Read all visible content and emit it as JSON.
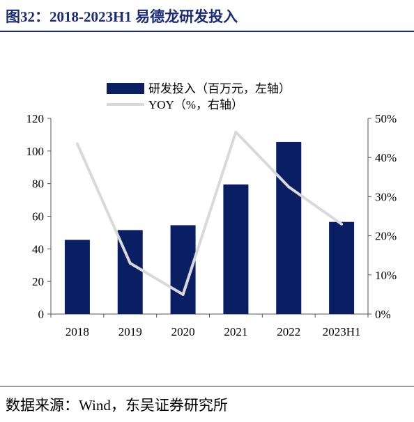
{
  "figure": {
    "title": "图32：2018-2023H1 易德龙研发投入",
    "source": "数据来源：Wind，东吴证券研究所"
  },
  "colors": {
    "bar": "#0a1f63",
    "line": "#d9d9d9",
    "title": "#1a2a78"
  },
  "chart_data": {
    "type": "bar",
    "categories": [
      "2018",
      "2019",
      "2020",
      "2021",
      "2022",
      "2023H1"
    ],
    "series": [
      {
        "name": "研发投入（百万元，左轴）",
        "type": "bar",
        "axis": "left",
        "values": [
          45.5,
          51.5,
          54.5,
          79.5,
          105.5,
          56.5
        ]
      },
      {
        "name": "YOY（%，右轴）",
        "type": "line",
        "axis": "right",
        "values": [
          43.5,
          13.0,
          5.0,
          46.5,
          32.5,
          23.0
        ]
      }
    ],
    "y_left": {
      "ylim": [
        0,
        120
      ],
      "ticks": [
        "0",
        "20",
        "40",
        "60",
        "80",
        "100",
        "120"
      ]
    },
    "y_right": {
      "ylim": [
        0,
        50
      ],
      "ticks": [
        "0%",
        "10%",
        "20%",
        "30%",
        "40%",
        "50%"
      ]
    },
    "legend_position": "top-center",
    "grid": false
  }
}
